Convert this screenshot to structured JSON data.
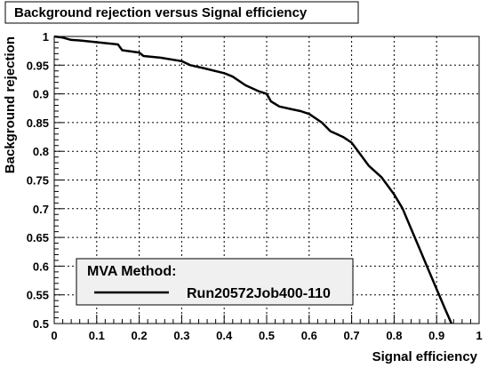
{
  "chart_data": {
    "type": "line",
    "title": "Background rejection versus Signal efficiency",
    "xlabel": "Signal efficiency",
    "ylabel": "Background rejection",
    "xlim": [
      0,
      1
    ],
    "ylim": [
      0.5,
      1
    ],
    "x_ticks": [
      "0",
      "0.1",
      "0.2",
      "0.3",
      "0.4",
      "0.5",
      "0.6",
      "0.7",
      "0.8",
      "0.9",
      "1"
    ],
    "y_ticks": [
      "0.5",
      "0.55",
      "0.6",
      "0.65",
      "0.7",
      "0.75",
      "0.8",
      "0.85",
      "0.9",
      "0.95",
      "1"
    ],
    "grid": true,
    "legend": {
      "header": "MVA Method:",
      "placement": "bottom-left",
      "entries": [
        "Run20572Job400-110"
      ]
    },
    "series": [
      {
        "name": "Run20572Job400-110",
        "color": "#000000",
        "x": [
          0.0,
          0.02,
          0.04,
          0.06,
          0.1,
          0.15,
          0.16,
          0.2,
          0.21,
          0.25,
          0.3,
          0.32,
          0.35,
          0.4,
          0.42,
          0.45,
          0.48,
          0.5,
          0.51,
          0.53,
          0.56,
          0.58,
          0.6,
          0.63,
          0.65,
          0.68,
          0.7,
          0.72,
          0.74,
          0.77,
          0.8,
          0.82,
          0.84,
          0.86,
          0.88,
          0.9,
          0.92,
          0.935
        ],
        "y": [
          1.0,
          0.998,
          0.994,
          0.993,
          0.99,
          0.986,
          0.976,
          0.972,
          0.966,
          0.963,
          0.957,
          0.95,
          0.945,
          0.936,
          0.93,
          0.915,
          0.905,
          0.9,
          0.887,
          0.878,
          0.873,
          0.87,
          0.865,
          0.85,
          0.835,
          0.825,
          0.815,
          0.795,
          0.775,
          0.755,
          0.725,
          0.7,
          0.665,
          0.63,
          0.595,
          0.56,
          0.525,
          0.5
        ]
      }
    ]
  }
}
